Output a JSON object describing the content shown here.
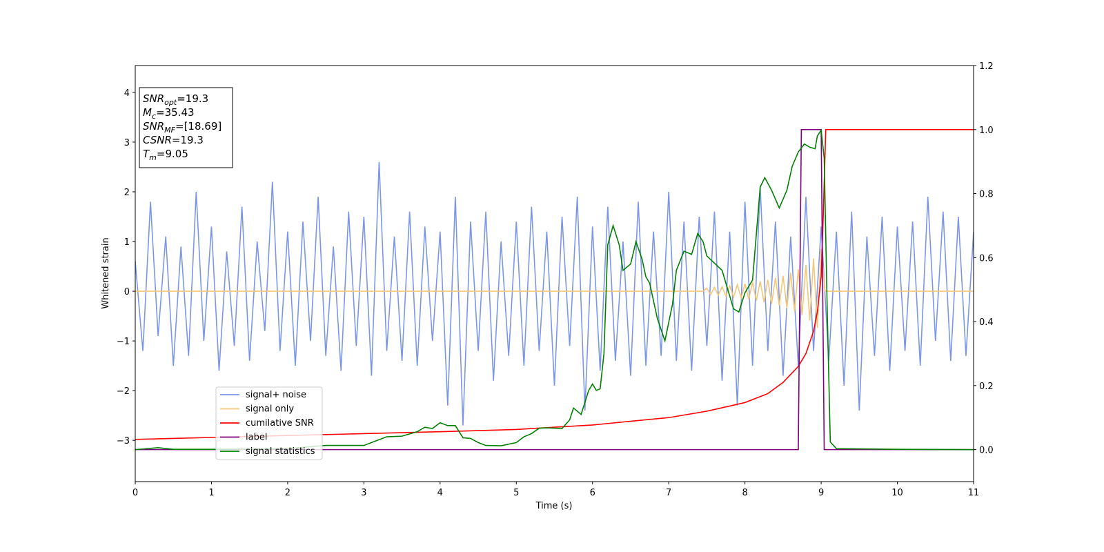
{
  "chart_data": {
    "type": "line",
    "xlabel": "Time (s)",
    "ylabel": "Whitened strain",
    "xlim": [
      0,
      11
    ],
    "xticks": [
      0,
      1,
      2,
      3,
      4,
      5,
      6,
      7,
      8,
      9,
      10,
      11
    ],
    "ylim": [
      -3.83,
      4.54
    ],
    "yticks": [
      {
        "value": -3,
        "label": "−3"
      },
      {
        "value": -2,
        "label": "−2"
      },
      {
        "value": -1,
        "label": "−1"
      },
      0,
      1,
      2,
      3,
      4
    ],
    "y2lim": [
      -0.1,
      1.2
    ],
    "y2ticks": [
      {
        "value": 0,
        "label": "0.0"
      },
      {
        "value": 0.2,
        "label": "0.2"
      },
      {
        "value": 0.4,
        "label": "0.4"
      },
      {
        "value": 0.6,
        "label": "0.6"
      },
      {
        "value": 0.8,
        "label": "0.8"
      },
      {
        "value": 1,
        "label": "1.0"
      },
      {
        "value": 1.2,
        "label": "1.2"
      }
    ],
    "legend": "lower left",
    "stats_box": [
      {
        "main": "SNR",
        "sub": "opt",
        "rest": "=19.3"
      },
      {
        "main": "M",
        "sub": "c",
        "rest": "=35.43"
      },
      {
        "main": "SNR",
        "sub": "MF",
        "rest": "=[18.69]"
      },
      {
        "main": "CSNR",
        "rest": "=19.3"
      },
      {
        "main": "T",
        "sub": "m",
        "rest": "=9.05"
      }
    ],
    "series": [
      {
        "name": "signal+ noise",
        "color": "#7b96e8",
        "x": [
          0,
          0.1,
          0.2,
          0.3,
          0.4,
          0.5,
          0.6,
          0.7,
          0.8,
          0.9,
          1,
          1.1,
          1.2,
          1.3,
          1.4,
          1.5,
          1.6,
          1.7,
          1.8,
          1.9,
          2,
          2.1,
          2.2,
          2.3,
          2.4,
          2.5,
          2.6,
          2.7,
          2.8,
          2.9,
          3,
          3.1,
          3.2,
          3.3,
          3.4,
          3.5,
          3.6,
          3.7,
          3.8,
          3.9,
          4,
          4.1,
          4.2,
          4.3,
          4.4,
          4.5,
          4.6,
          4.7,
          4.8,
          4.9,
          5,
          5.1,
          5.2,
          5.3,
          5.4,
          5.5,
          5.6,
          5.7,
          5.8,
          5.9,
          6,
          6.1,
          6.2,
          6.3,
          6.4,
          6.5,
          6.6,
          6.7,
          6.8,
          6.9,
          7,
          7.1,
          7.2,
          7.3,
          7.4,
          7.5,
          7.6,
          7.7,
          7.8,
          7.9,
          8,
          8.1,
          8.2,
          8.3,
          8.4,
          8.5,
          8.6,
          8.7,
          8.8,
          8.9,
          9,
          9.1,
          9.2,
          9.3,
          9.4,
          9.5,
          9.6,
          9.7,
          9.8,
          9.9,
          10,
          10.1,
          10.2,
          10.3,
          10.4,
          10.5,
          10.6,
          10.7,
          10.8,
          10.9,
          11
        ],
        "values": [
          0.6,
          -1.2,
          1.8,
          -0.9,
          1.1,
          -1.5,
          0.9,
          -1.3,
          2.0,
          -1.0,
          1.3,
          -1.6,
          0.8,
          -1.1,
          1.7,
          -1.4,
          1.0,
          -0.8,
          2.2,
          -1.2,
          1.2,
          -1.5,
          1.4,
          -1.0,
          1.9,
          -1.3,
          0.9,
          -1.6,
          1.6,
          -1.1,
          1.5,
          -1.7,
          2.6,
          -1.2,
          1.1,
          -1.4,
          1.6,
          -1.5,
          1.3,
          -1.0,
          1.2,
          -2.3,
          1.9,
          -2.7,
          1.4,
          -1.2,
          1.6,
          -1.8,
          1.0,
          -1.3,
          1.4,
          -1.5,
          1.7,
          -1.2,
          1.2,
          -1.9,
          1.5,
          -1.1,
          1.9,
          -2.4,
          1.3,
          -1.6,
          1.7,
          -1.4,
          1.0,
          -1.7,
          1.8,
          -1.5,
          1.2,
          -1.3,
          2.0,
          -1.4,
          1.4,
          -1.6,
          1.5,
          -1.1,
          1.6,
          -1.8,
          1.2,
          -2.3,
          1.8,
          -1.5,
          2.1,
          -1.2,
          1.4,
          -1.7,
          1.1,
          -1.5,
          1.9,
          -1.2,
          1.3,
          -1.4,
          1.2,
          -1.9,
          1.6,
          -2.4,
          1.1,
          -1.3,
          1.5,
          -1.6,
          1.3,
          -1.2,
          1.4,
          -1.5,
          1.9,
          -1.0,
          1.6,
          -1.4,
          1.5,
          -1.3,
          1.2
        ]
      },
      {
        "name": "signal only",
        "color": "#f4c677",
        "x": [
          0,
          7.45,
          7.5,
          7.55,
          7.6,
          7.65,
          7.7,
          7.75,
          7.8,
          7.85,
          7.9,
          7.95,
          8,
          8.05,
          8.1,
          8.15,
          8.2,
          8.25,
          8.3,
          8.35,
          8.4,
          8.45,
          8.5,
          8.55,
          8.6,
          8.65,
          8.7,
          8.75,
          8.8,
          8.85,
          8.9,
          8.95,
          9,
          9.05,
          11
        ],
        "values": [
          0,
          0,
          0.06,
          -0.07,
          0.08,
          -0.08,
          0.09,
          -0.1,
          0.11,
          -0.12,
          0.13,
          -0.14,
          0.15,
          -0.16,
          0.18,
          -0.19,
          0.2,
          -0.22,
          0.23,
          -0.25,
          0.27,
          -0.29,
          0.31,
          -0.34,
          0.37,
          -0.4,
          0.44,
          -0.48,
          0.53,
          -0.59,
          0.66,
          -0.74,
          0.85,
          0,
          0
        ]
      },
      {
        "name": "cumilative SNR",
        "color": "#ff0000",
        "axis": "y2",
        "x": [
          0,
          1,
          2,
          3,
          4,
          5,
          6,
          7,
          7.5,
          8,
          8.3,
          8.5,
          8.7,
          8.8,
          8.9,
          8.95,
          9,
          9.03,
          9.06,
          11
        ],
        "values": [
          0.032,
          0.038,
          0.044,
          0.05,
          0.056,
          0.063,
          0.077,
          0.1,
          0.12,
          0.147,
          0.175,
          0.21,
          0.26,
          0.3,
          0.37,
          0.43,
          0.54,
          0.75,
          1,
          1
        ]
      },
      {
        "name": "label",
        "color": "#800080",
        "axis": "y2",
        "x": [
          0,
          8.7,
          8.74,
          9,
          9.04,
          11
        ],
        "values": [
          0,
          0,
          1,
          1,
          0,
          0
        ]
      },
      {
        "name": "signal statistics",
        "color": "#008000",
        "axis": "y2",
        "x": [
          0,
          0.3,
          0.5,
          1,
          2,
          2.5,
          3,
          3.3,
          3.5,
          3.7,
          3.8,
          3.9,
          4,
          4.1,
          4.2,
          4.3,
          4.4,
          4.5,
          4.6,
          4.8,
          5,
          5.1,
          5.2,
          5.3,
          5.4,
          5.6,
          5.7,
          5.75,
          5.85,
          5.95,
          6,
          6.05,
          6.1,
          6.15,
          6.2,
          6.27,
          6.35,
          6.4,
          6.5,
          6.57,
          6.65,
          6.7,
          6.75,
          6.85,
          6.95,
          7.05,
          7.1,
          7.2,
          7.3,
          7.38,
          7.45,
          7.5,
          7.7,
          7.85,
          7.92,
          8,
          8.1,
          8.2,
          8.26,
          8.35,
          8.45,
          8.55,
          8.62,
          8.7,
          8.78,
          8.85,
          8.92,
          8.95,
          9,
          9.04,
          9.08,
          9.12,
          9.2,
          10,
          11
        ],
        "values": [
          0,
          0.006,
          0.001,
          0.001,
          0.003,
          0.013,
          0.013,
          0.04,
          0.042,
          0.056,
          0.07,
          0.066,
          0.084,
          0.075,
          0.075,
          0.037,
          0.035,
          0.022,
          0.013,
          0.012,
          0.022,
          0.04,
          0.05,
          0.067,
          0.068,
          0.066,
          0.093,
          0.13,
          0.11,
          0.185,
          0.205,
          0.185,
          0.19,
          0.3,
          0.64,
          0.7,
          0.64,
          0.56,
          0.58,
          0.65,
          0.595,
          0.54,
          0.52,
          0.41,
          0.34,
          0.455,
          0.56,
          0.62,
          0.61,
          0.675,
          0.65,
          0.605,
          0.56,
          0.44,
          0.43,
          0.49,
          0.53,
          0.82,
          0.85,
          0.81,
          0.755,
          0.81,
          0.885,
          0.93,
          0.955,
          0.945,
          0.94,
          0.98,
          0.998,
          0.91,
          0.43,
          0.024,
          0.003,
          0.001,
          0
        ]
      }
    ]
  }
}
